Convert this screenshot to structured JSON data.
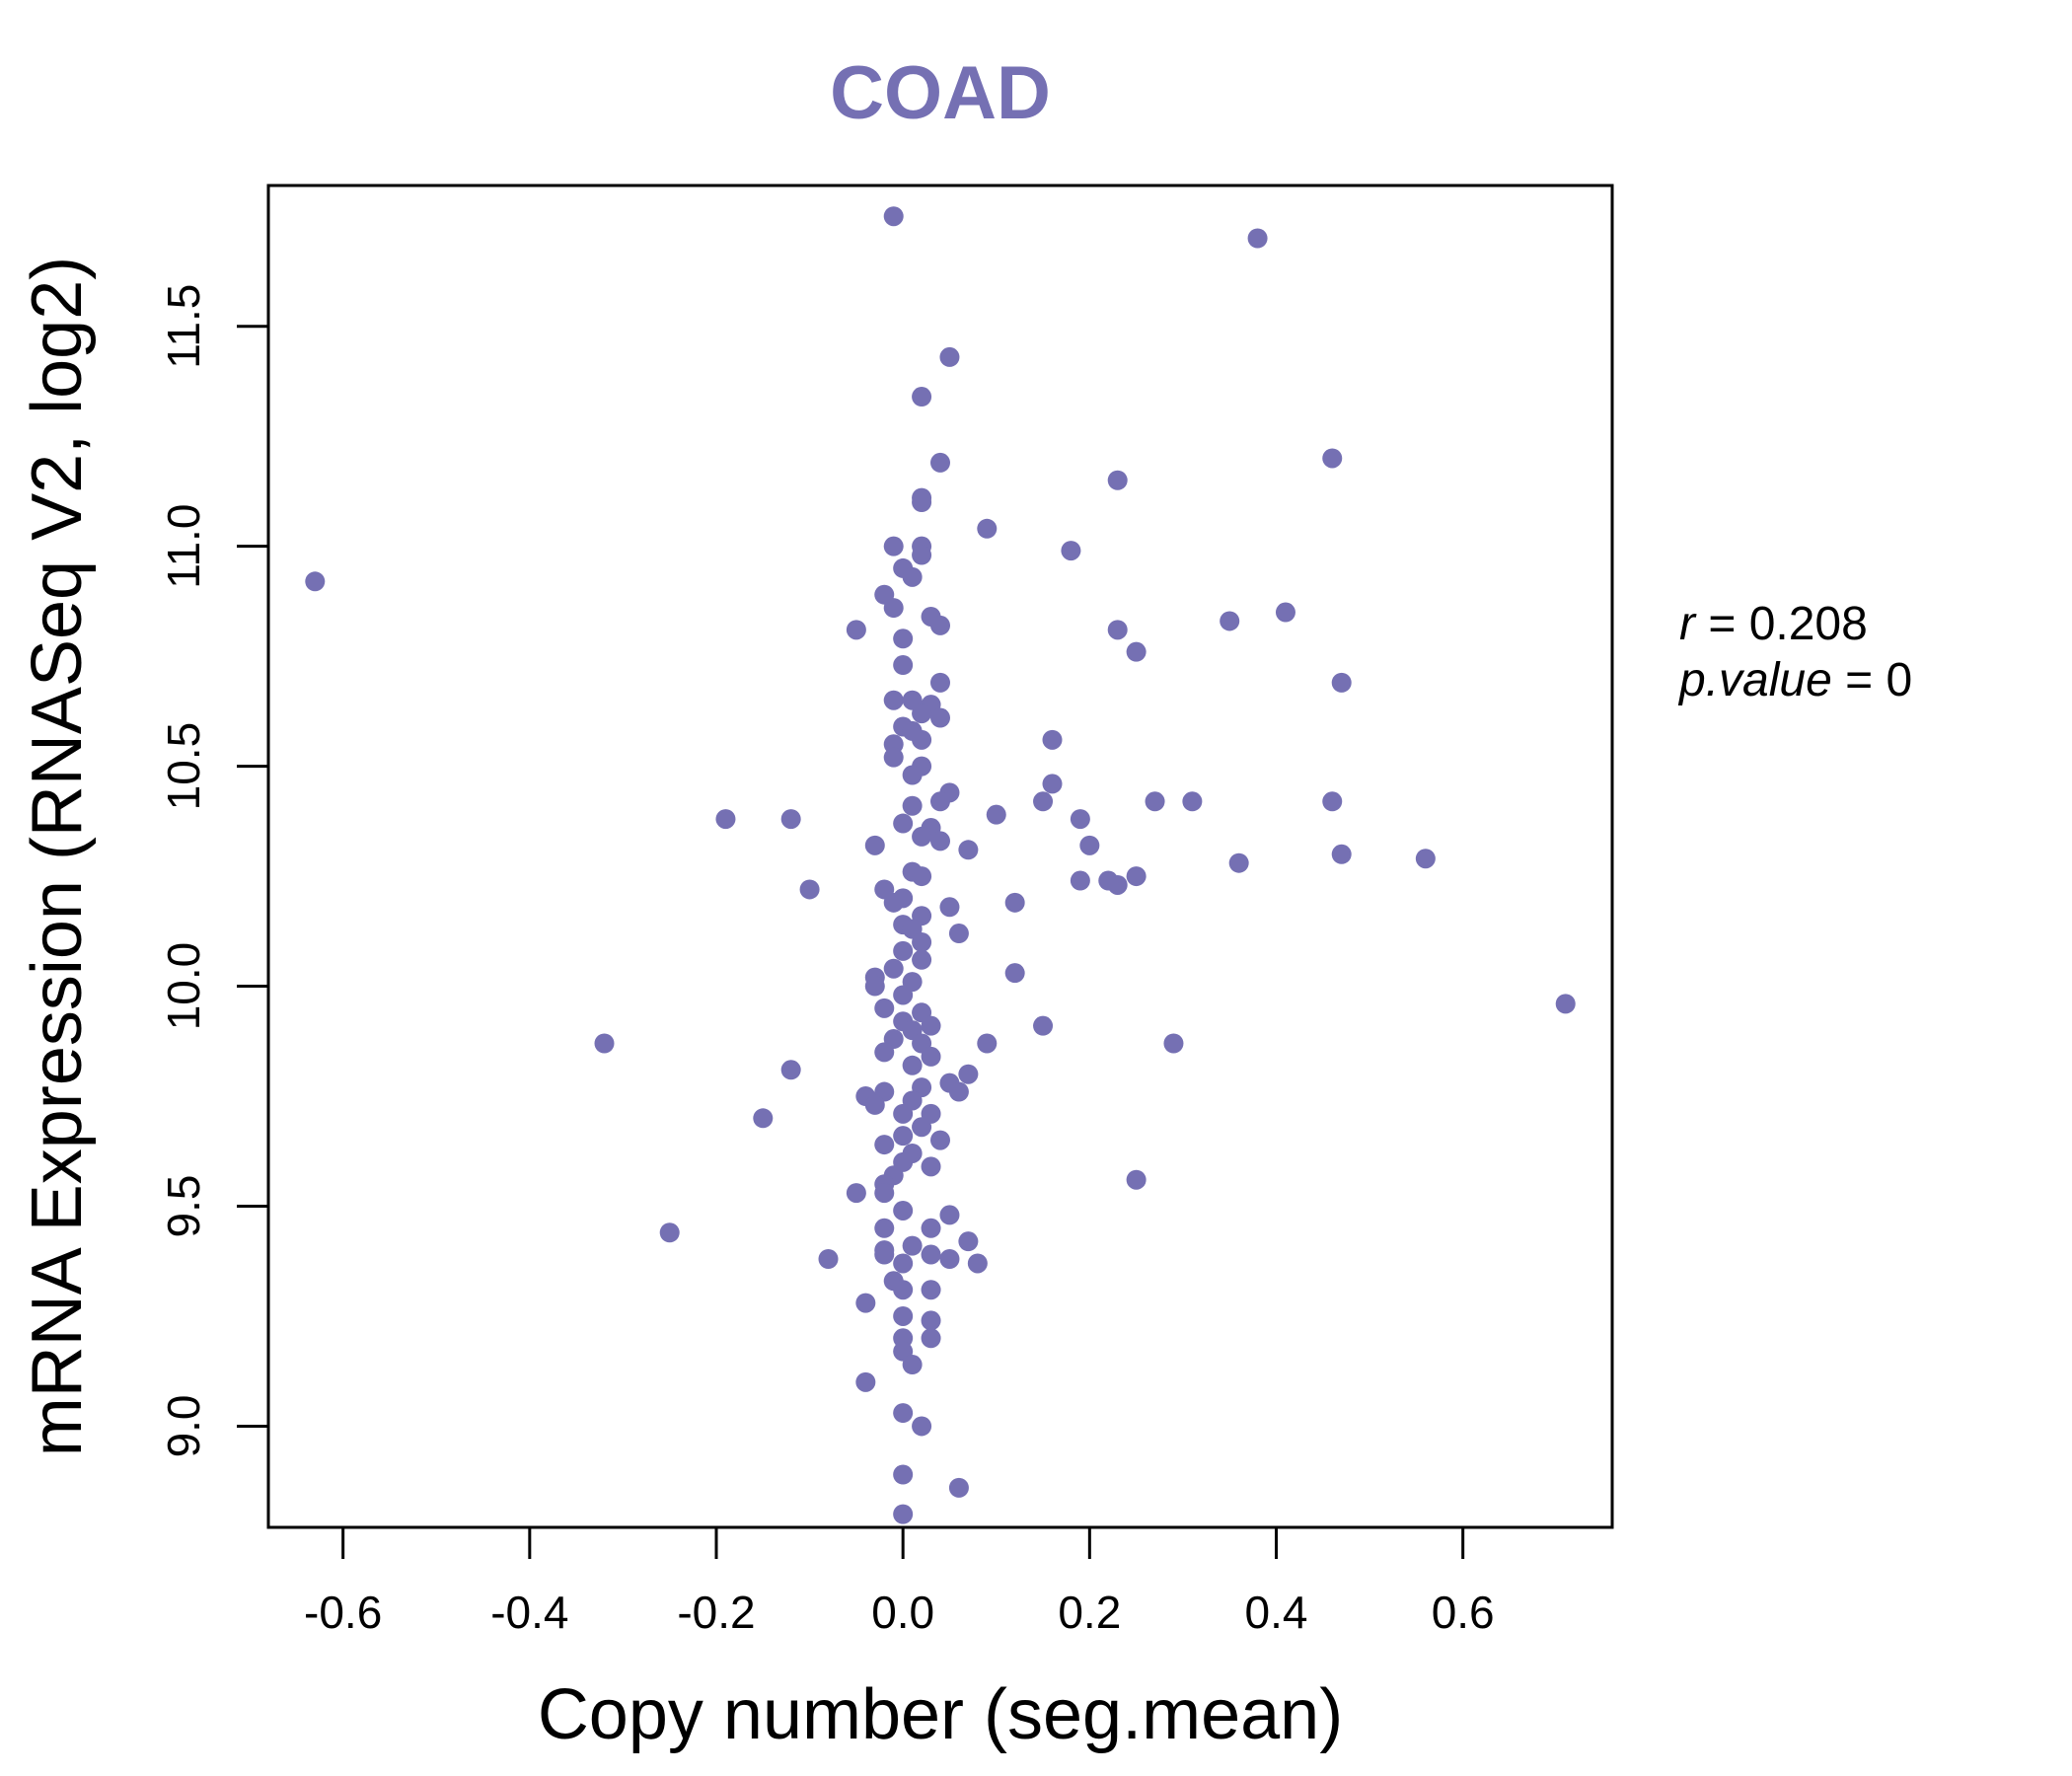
{
  "colors": {
    "accent": "#7570b3",
    "axis": "#000000",
    "background": "#ffffff"
  },
  "chart_data": {
    "type": "scatter",
    "title": "COAD",
    "xlabel": "Copy number (seg.mean)",
    "ylabel": "mRNA Expression (RNASeq V2, log2)",
    "xlim": [
      -0.68,
      0.76
    ],
    "ylim": [
      8.77,
      11.82
    ],
    "xticks": [
      -0.6,
      -0.4,
      -0.2,
      0.0,
      0.2,
      0.4,
      0.6
    ],
    "xtick_labels": [
      "-0.6",
      "-0.4",
      "-0.2",
      "0.0",
      "0.2",
      "0.4",
      "0.6"
    ],
    "yticks": [
      9.0,
      9.5,
      10.0,
      10.5,
      11.0,
      11.5
    ],
    "ytick_labels": [
      "9.0",
      "9.5",
      "10.0",
      "10.5",
      "11.0",
      "11.5"
    ],
    "annotation": {
      "r_label": "r",
      "r_value": "0.208",
      "p_label": "p.value",
      "p_value": "0"
    },
    "points": [
      [
        -0.63,
        10.92
      ],
      [
        -0.01,
        11.75
      ],
      [
        0.38,
        11.7
      ],
      [
        0.05,
        11.43
      ],
      [
        0.02,
        11.34
      ],
      [
        0.46,
        11.2
      ],
      [
        0.04,
        11.19
      ],
      [
        0.23,
        11.15
      ],
      [
        0.02,
        11.11
      ],
      [
        0.02,
        11.1
      ],
      [
        0.09,
        11.04
      ],
      [
        0.18,
        10.99
      ],
      [
        -0.01,
        11.0
      ],
      [
        0.02,
        11.0
      ],
      [
        0.02,
        10.98
      ],
      [
        0.0,
        10.95
      ],
      [
        0.01,
        10.93
      ],
      [
        -0.02,
        10.89
      ],
      [
        0.41,
        10.85
      ],
      [
        -0.01,
        10.86
      ],
      [
        0.03,
        10.84
      ],
      [
        0.04,
        10.82
      ],
      [
        0.35,
        10.83
      ],
      [
        0.23,
        10.81
      ],
      [
        -0.05,
        10.81
      ],
      [
        0.0,
        10.79
      ],
      [
        0.25,
        10.76
      ],
      [
        0.0,
        10.73
      ],
      [
        0.47,
        10.69
      ],
      [
        0.04,
        10.69
      ],
      [
        -0.01,
        10.65
      ],
      [
        0.01,
        10.65
      ],
      [
        0.03,
        10.64
      ],
      [
        0.02,
        10.62
      ],
      [
        0.04,
        10.61
      ],
      [
        0.0,
        10.59
      ],
      [
        0.01,
        10.58
      ],
      [
        0.16,
        10.56
      ],
      [
        -0.01,
        10.55
      ],
      [
        0.02,
        10.56
      ],
      [
        -0.01,
        10.52
      ],
      [
        0.02,
        10.5
      ],
      [
        0.01,
        10.48
      ],
      [
        0.16,
        10.46
      ],
      [
        0.05,
        10.44
      ],
      [
        0.15,
        10.42
      ],
      [
        0.04,
        10.42
      ],
      [
        0.46,
        10.42
      ],
      [
        0.27,
        10.42
      ],
      [
        0.31,
        10.42
      ],
      [
        0.01,
        10.41
      ],
      [
        0.1,
        10.39
      ],
      [
        0.19,
        10.38
      ],
      [
        -0.19,
        10.38
      ],
      [
        -0.12,
        10.38
      ],
      [
        0.0,
        10.37
      ],
      [
        0.03,
        10.36
      ],
      [
        0.02,
        10.34
      ],
      [
        0.2,
        10.32
      ],
      [
        -0.03,
        10.32
      ],
      [
        0.04,
        10.33
      ],
      [
        0.07,
        10.31
      ],
      [
        0.47,
        10.3
      ],
      [
        0.56,
        10.29
      ],
      [
        0.36,
        10.28
      ],
      [
        0.01,
        10.26
      ],
      [
        0.02,
        10.25
      ],
      [
        0.25,
        10.25
      ],
      [
        0.22,
        10.24
      ],
      [
        0.19,
        10.24
      ],
      [
        0.23,
        10.23
      ],
      [
        -0.1,
        10.22
      ],
      [
        -0.02,
        10.22
      ],
      [
        0.0,
        10.2
      ],
      [
        -0.01,
        10.19
      ],
      [
        0.12,
        10.19
      ],
      [
        0.05,
        10.18
      ],
      [
        0.02,
        10.16
      ],
      [
        0.0,
        10.14
      ],
      [
        0.01,
        10.13
      ],
      [
        0.06,
        10.12
      ],
      [
        0.02,
        10.1
      ],
      [
        0.0,
        10.08
      ],
      [
        0.02,
        10.06
      ],
      [
        -0.01,
        10.04
      ],
      [
        0.12,
        10.03
      ],
      [
        -0.03,
        10.02
      ],
      [
        0.01,
        10.01
      ],
      [
        -0.03,
        10.0
      ],
      [
        0.0,
        9.98
      ],
      [
        0.71,
        9.96
      ],
      [
        -0.02,
        9.95
      ],
      [
        0.02,
        9.94
      ],
      [
        0.0,
        9.92
      ],
      [
        0.03,
        9.91
      ],
      [
        0.15,
        9.91
      ],
      [
        0.01,
        9.9
      ],
      [
        -0.01,
        9.88
      ],
      [
        0.02,
        9.87
      ],
      [
        -0.32,
        9.87
      ],
      [
        0.29,
        9.87
      ],
      [
        0.09,
        9.87
      ],
      [
        -0.02,
        9.85
      ],
      [
        0.03,
        9.84
      ],
      [
        0.01,
        9.82
      ],
      [
        -0.12,
        9.81
      ],
      [
        0.07,
        9.8
      ],
      [
        0.05,
        9.78
      ],
      [
        0.02,
        9.77
      ],
      [
        -0.02,
        9.76
      ],
      [
        0.06,
        9.76
      ],
      [
        -0.04,
        9.75
      ],
      [
        0.01,
        9.74
      ],
      [
        -0.03,
        9.73
      ],
      [
        0.0,
        9.71
      ],
      [
        0.03,
        9.71
      ],
      [
        -0.15,
        9.7
      ],
      [
        0.02,
        9.68
      ],
      [
        0.0,
        9.66
      ],
      [
        0.04,
        9.65
      ],
      [
        -0.02,
        9.64
      ],
      [
        0.01,
        9.62
      ],
      [
        0.0,
        9.6
      ],
      [
        0.03,
        9.59
      ],
      [
        -0.01,
        9.57
      ],
      [
        0.25,
        9.56
      ],
      [
        -0.02,
        9.55
      ],
      [
        -0.02,
        9.53
      ],
      [
        -0.05,
        9.53
      ],
      [
        0.0,
        9.49
      ],
      [
        0.05,
        9.48
      ],
      [
        0.03,
        9.45
      ],
      [
        -0.02,
        9.45
      ],
      [
        -0.25,
        9.44
      ],
      [
        0.07,
        9.42
      ],
      [
        0.01,
        9.41
      ],
      [
        -0.02,
        9.4
      ],
      [
        0.03,
        9.39
      ],
      [
        -0.02,
        9.39
      ],
      [
        0.05,
        9.38
      ],
      [
        -0.08,
        9.38
      ],
      [
        0.08,
        9.37
      ],
      [
        0.0,
        9.37
      ],
      [
        -0.01,
        9.33
      ],
      [
        0.0,
        9.31
      ],
      [
        0.03,
        9.31
      ],
      [
        -0.04,
        9.28
      ],
      [
        0.0,
        9.25
      ],
      [
        0.03,
        9.24
      ],
      [
        0.0,
        9.2
      ],
      [
        0.03,
        9.2
      ],
      [
        0.0,
        9.17
      ],
      [
        0.01,
        9.14
      ],
      [
        -0.04,
        9.1
      ],
      [
        0.0,
        9.03
      ],
      [
        0.02,
        9.0
      ],
      [
        0.0,
        8.89
      ],
      [
        0.06,
        8.86
      ],
      [
        0.0,
        8.8
      ]
    ]
  }
}
